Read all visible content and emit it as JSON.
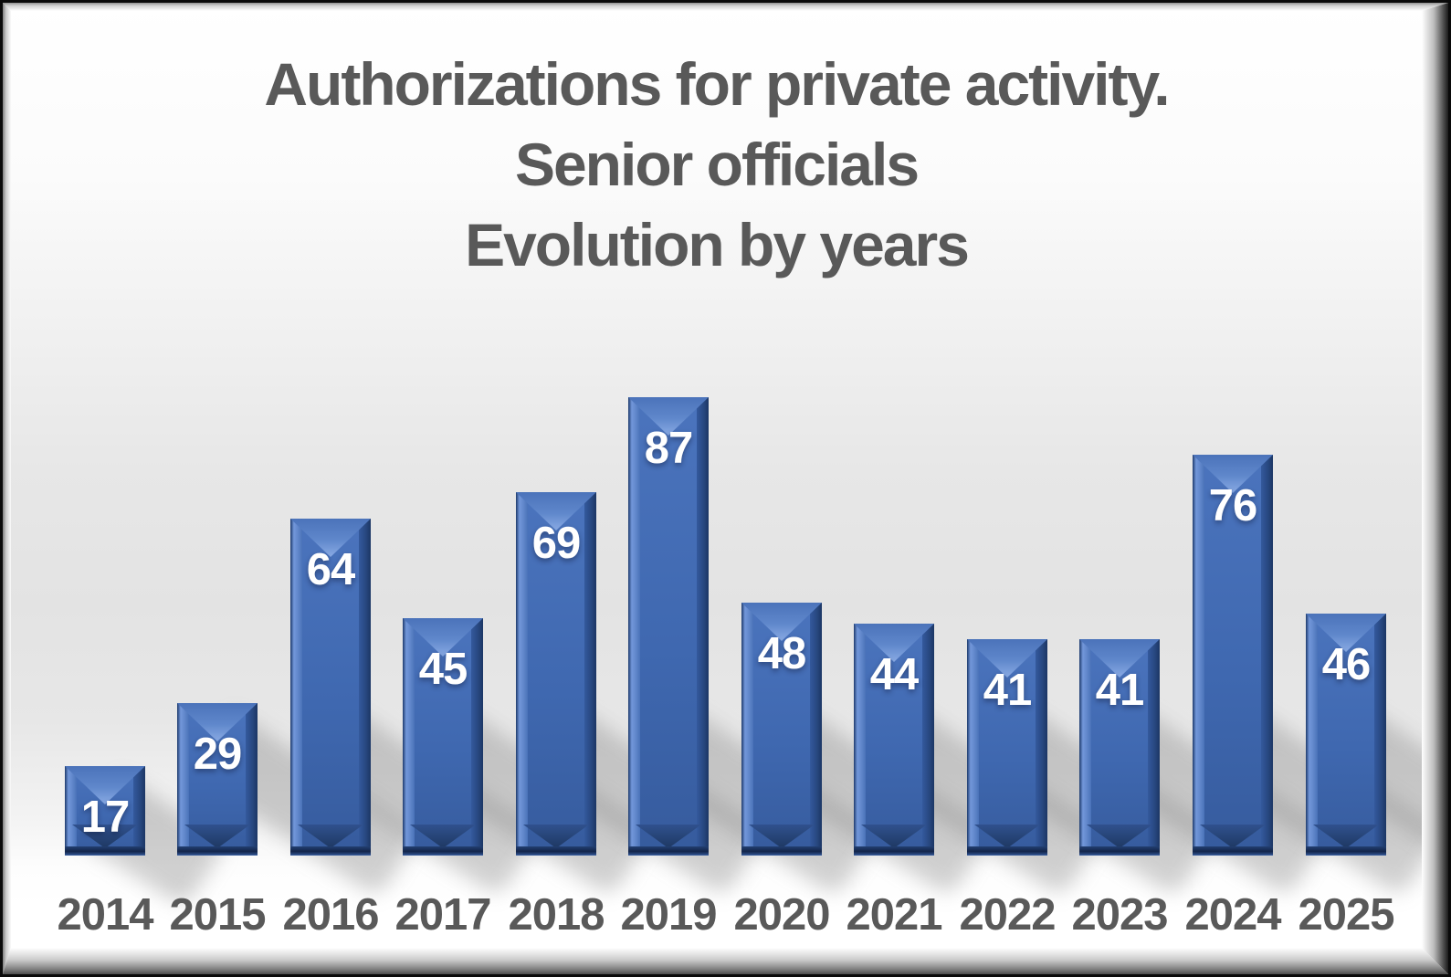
{
  "chart_data": {
    "type": "bar",
    "title": "Authorizations for private activity. Senior officials Evolution by years",
    "title_lines": [
      "Authorizations for private activity.",
      "Senior officials",
      "Evolution by years"
    ],
    "categories": [
      "2014",
      "2015",
      "2016",
      "2017",
      "2018",
      "2019",
      "2020",
      "2021",
      "2022",
      "2023",
      "2024",
      "2025"
    ],
    "values": [
      17,
      29,
      64,
      45,
      69,
      87,
      48,
      44,
      41,
      41,
      76,
      46
    ],
    "xlabel": "",
    "ylabel": "",
    "ylim": [
      0,
      90
    ],
    "grid": false,
    "legend": "none",
    "data_labels": "inside-end",
    "bar_style": "3d-bevel",
    "colors": {
      "bar_face": "#3f68b0",
      "bar_highlight": "#8aabe4",
      "bar_dark": "#13254a",
      "data_label": "#ffffff",
      "axis_label": "#595959",
      "title": "#595959",
      "background_top": "#ffffff",
      "background_mid": "#e3e3e3"
    }
  }
}
